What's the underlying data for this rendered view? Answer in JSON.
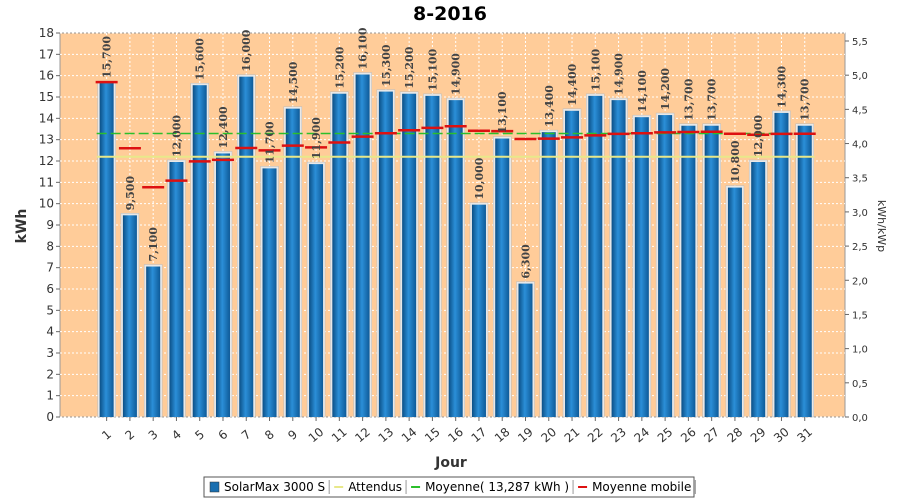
{
  "chart_data": {
    "type": "bar",
    "title": "8-2016",
    "xlabel": "Jour",
    "ylabel": "kWh",
    "y2label": "kWh/kWp",
    "ylim": [
      0,
      18
    ],
    "y2lim": [
      0,
      5.5
    ],
    "yticks": [
      "0",
      "1",
      "2",
      "3",
      "4",
      "5",
      "6",
      "7",
      "8",
      "9",
      "10",
      "11",
      "12",
      "13",
      "14",
      "15",
      "16",
      "17",
      "18"
    ],
    "y2ticks": [
      "0,0",
      "0,5",
      "1,0",
      "1,5",
      "2,0",
      "2,5",
      "3,0",
      "3,5",
      "4,0",
      "4,5",
      "5,0",
      "5,5"
    ],
    "categories": [
      "1",
      "2",
      "3",
      "4",
      "5",
      "6",
      "7",
      "8",
      "9",
      "10",
      "11",
      "12",
      "13",
      "14",
      "15",
      "16",
      "17",
      "18",
      "19",
      "20",
      "21",
      "22",
      "23",
      "24",
      "25",
      "26",
      "27",
      "28",
      "29",
      "30",
      "31"
    ],
    "series": [
      {
        "name": "SolarMax 3000 S",
        "values": [
          15.7,
          9.5,
          7.1,
          12.0,
          15.6,
          12.4,
          16.0,
          11.7,
          14.5,
          11.9,
          15.2,
          16.1,
          15.3,
          15.2,
          15.1,
          14.9,
          10.0,
          13.1,
          6.3,
          13.4,
          14.4,
          15.1,
          14.9,
          14.1,
          14.2,
          13.7,
          13.7,
          10.8,
          12.0,
          14.3,
          13.7
        ],
        "labels": [
          "15,700",
          "9,500",
          "7,100",
          "12,000",
          "15,600",
          "12,400",
          "16,000",
          "11,700",
          "14,500",
          "11,900",
          "15,200",
          "16,100",
          "15,300",
          "15,200",
          "15,100",
          "14,900",
          "10,000",
          "13,100",
          "6,300",
          "13,400",
          "14,400",
          "15,100",
          "14,900",
          "14,100",
          "14,200",
          "13,700",
          "13,700",
          "10,800",
          "12,000",
          "14,300",
          "13,700"
        ],
        "color": "#1a6fb0"
      },
      {
        "name": "Attendus",
        "type": "line",
        "value": 12.2,
        "color": "#e8e88a"
      },
      {
        "name": "Moyenne( 13,287 kWh )",
        "type": "line",
        "value": 13.287,
        "color": "#2bbf2b"
      },
      {
        "name": "Moyenne mobile",
        "type": "step",
        "values": [
          15.7,
          12.6,
          10.77,
          11.08,
          11.98,
          12.05,
          12.61,
          12.5,
          12.72,
          12.64,
          12.87,
          13.14,
          13.3,
          13.44,
          13.55,
          13.63,
          13.42,
          13.4,
          13.03,
          13.05,
          13.11,
          13.2,
          13.27,
          13.3,
          13.34,
          13.36,
          13.37,
          13.28,
          13.23,
          13.27,
          13.28
        ],
        "color": "#dd1111"
      }
    ],
    "grid": true,
    "legend_position": "bottom",
    "plot_background": "#ffcc99"
  }
}
